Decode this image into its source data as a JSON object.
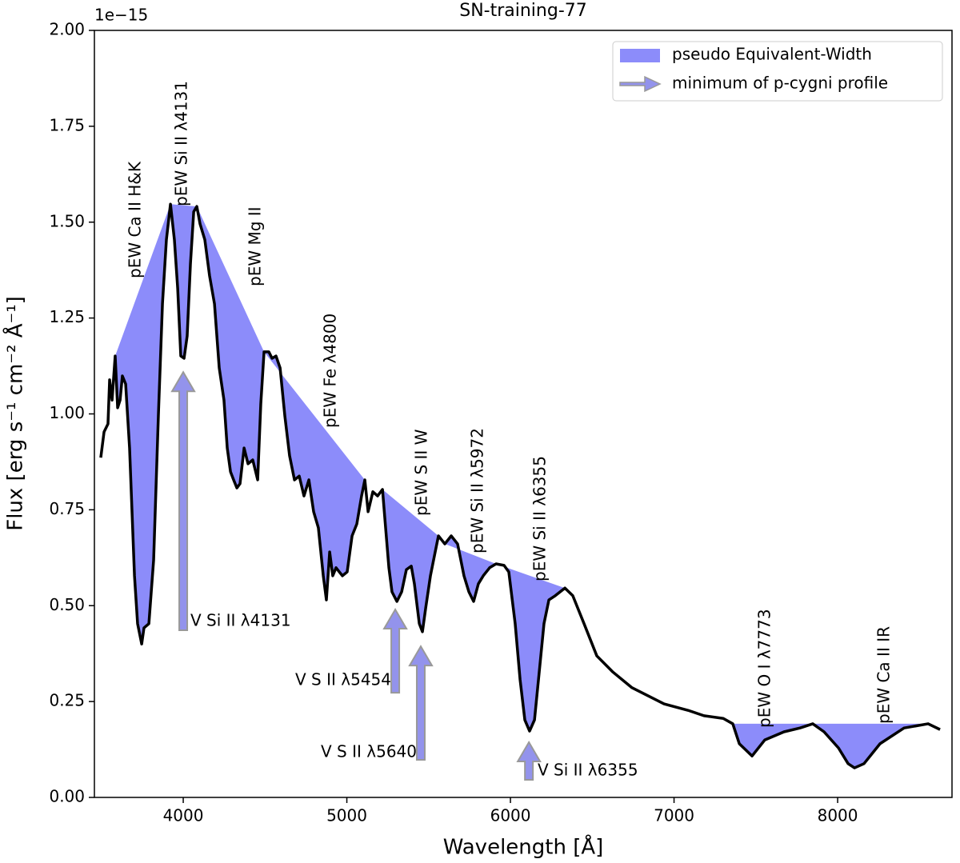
{
  "chart_data": {
    "type": "line",
    "title": "SN-training-77",
    "x_label": "Wavelength [Å]",
    "y_label": "Flux [erg s⁻¹ cm⁻² Å⁻¹]",
    "offset_text": "1e−15",
    "xlim": [
      3457,
      8699
    ],
    "ylim": [
      0,
      2
    ],
    "xticks": [
      4000,
      5000,
      6000,
      7000,
      8000
    ],
    "yticks": [
      {
        "value": 0,
        "label": "0.00"
      },
      {
        "value": 0.25,
        "label": "0.25"
      },
      {
        "value": 0.5,
        "label": "0.50"
      },
      {
        "value": 0.75,
        "label": "0.75"
      },
      {
        "value": 1,
        "label": "1.00"
      },
      {
        "value": 1.25,
        "label": "1.25"
      },
      {
        "value": 1.5,
        "label": "1.50"
      },
      {
        "value": 1.75,
        "label": "1.75"
      },
      {
        "value": 2,
        "label": "2.00"
      }
    ],
    "color": "#000000",
    "fill_color": "#8c8cfa",
    "arrow_color": "#9393ec",
    "arrow_edge": "#999999",
    "x": [
      3496,
      3516,
      3540,
      3550,
      3565,
      3584,
      3599,
      3614,
      3628,
      3648,
      3672,
      3702,
      3721,
      3746,
      3760,
      3790,
      3819,
      3848,
      3873,
      3897,
      3922,
      3946,
      3966,
      3985,
      4005,
      4024,
      4044,
      4064,
      4083,
      4103,
      4132,
      4161,
      4191,
      4220,
      4249,
      4269,
      4289,
      4308,
      4328,
      4347,
      4372,
      4396,
      4425,
      4455,
      4474,
      4494,
      4523,
      4543,
      4567,
      4592,
      4621,
      4650,
      4680,
      4709,
      4738,
      4768,
      4797,
      4826,
      4856,
      4875,
      4895,
      4914,
      4934,
      4954,
      4973,
      5002,
      5032,
      5061,
      5090,
      5110,
      5130,
      5159,
      5188,
      5218,
      5237,
      5257,
      5276,
      5306,
      5335,
      5364,
      5394,
      5413,
      5443,
      5462,
      5482,
      5511,
      5540,
      5560,
      5599,
      5638,
      5677,
      5716,
      5746,
      5775,
      5804,
      5834,
      5873,
      5912,
      5961,
      5990,
      6029,
      6059,
      6088,
      6117,
      6147,
      6176,
      6205,
      6235,
      6274,
      6333,
      6381,
      6450,
      6528,
      6626,
      6743,
      6841,
      6939,
      7086,
      7183,
      7301,
      7359,
      7399,
      7477,
      7555,
      7672,
      7770,
      7848,
      7917,
      8005,
      8064,
      8103,
      8161,
      8259,
      8406,
      8553,
      8626
    ],
    "values": [
      0.886,
      0.953,
      0.974,
      1.089,
      1.036,
      1.151,
      1.016,
      1.036,
      1.099,
      1.078,
      0.911,
      0.578,
      0.453,
      0.4,
      0.442,
      0.453,
      0.619,
      0.995,
      1.287,
      1.454,
      1.547,
      1.454,
      1.328,
      1.151,
      1.145,
      1.203,
      1.391,
      1.527,
      1.541,
      1.495,
      1.454,
      1.36,
      1.287,
      1.12,
      1.036,
      0.911,
      0.849,
      0.828,
      0.807,
      0.818,
      0.911,
      0.87,
      0.88,
      0.828,
      1.026,
      1.162,
      1.162,
      1.145,
      1.151,
      1.12,
      0.995,
      0.891,
      0.828,
      0.838,
      0.786,
      0.828,
      0.745,
      0.703,
      0.578,
      0.515,
      0.64,
      0.578,
      0.599,
      0.588,
      0.578,
      0.588,
      0.682,
      0.713,
      0.786,
      0.828,
      0.745,
      0.797,
      0.786,
      0.803,
      0.703,
      0.599,
      0.536,
      0.511,
      0.536,
      0.594,
      0.603,
      0.557,
      0.453,
      0.432,
      0.494,
      0.578,
      0.64,
      0.682,
      0.661,
      0.682,
      0.661,
      0.578,
      0.536,
      0.511,
      0.557,
      0.578,
      0.599,
      0.609,
      0.605,
      0.588,
      0.453,
      0.307,
      0.202,
      0.173,
      0.202,
      0.327,
      0.453,
      0.515,
      0.526,
      0.546,
      0.526,
      0.453,
      0.369,
      0.327,
      0.286,
      0.265,
      0.244,
      0.227,
      0.213,
      0.206,
      0.192,
      0.14,
      0.108,
      0.15,
      0.171,
      0.181,
      0.192,
      0.171,
      0.129,
      0.088,
      0.077,
      0.088,
      0.14,
      0.181,
      0.192,
      0.177
    ],
    "regions": [
      {
        "label": "pEW Ca II H&K",
        "start": 3584,
        "end": 3922
      },
      {
        "label": "pEW Si II λ4131",
        "start": 3922,
        "end": 4083
      },
      {
        "label": "pEW Mg II",
        "start": 4083,
        "end": 4494
      },
      {
        "label": "pEW Fe λ4800",
        "start": 4494,
        "end": 5110
      },
      {
        "label": "pEW S II W",
        "start": 5218,
        "end": 5560
      },
      {
        "label": "pEW Si II λ5972",
        "start": 5599,
        "end": 5912
      },
      {
        "label": "pEW Si II λ6355",
        "start": 5912,
        "end": 6333
      },
      {
        "label": "pEW O I λ7773",
        "start": 7359,
        "end": 7848
      },
      {
        "label": "pEW Ca II IR",
        "start": 7848,
        "end": 8553
      }
    ],
    "arrows": [
      {
        "label": "V Si II λ4131",
        "x": 4000,
        "tip": 1.109,
        "tail": 0.436
      },
      {
        "label": "V S II λ5454",
        "x": 5296,
        "tip": 0.49,
        "tail": 0.273
      },
      {
        "label": "V S II λ5640",
        "x": 5452,
        "tip": 0.394,
        "tail": 0.098
      },
      {
        "label": "V Si II λ6355",
        "x": 6113,
        "tip": 0.144,
        "tail": 0.046
      }
    ],
    "legend": {
      "position": "upper right",
      "entries": [
        "pseudo Equivalent-Width",
        "minimum of p-cygni profile"
      ]
    }
  }
}
